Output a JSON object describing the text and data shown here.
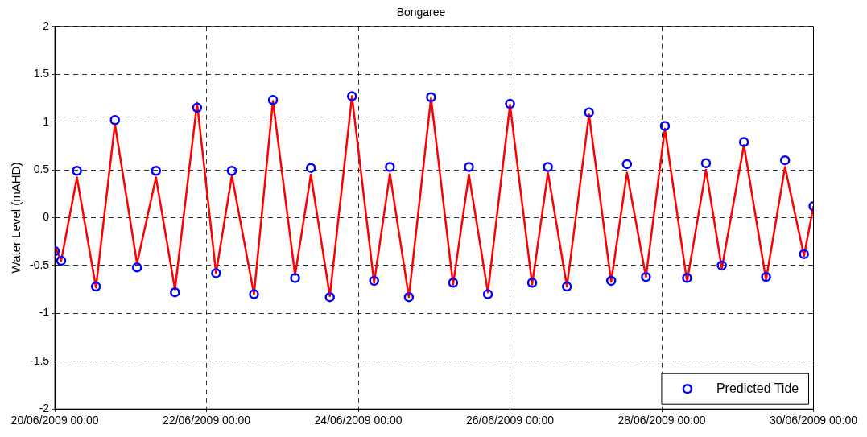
{
  "chart_data": {
    "type": "line",
    "title": "Bongaree",
    "ylabel": "Water Level (mAHD)",
    "xlim": [
      "2009-06-20",
      "2009-06-30"
    ],
    "xticks": [
      {
        "value": "2009-06-20",
        "label": "20/06/2009 00:00"
      },
      {
        "value": "2009-06-22",
        "label": "22/06/2009 00:00"
      },
      {
        "value": "2009-06-24",
        "label": "24/06/2009 00:00"
      },
      {
        "value": "2009-06-26",
        "label": "26/06/2009 00:00"
      },
      {
        "value": "2009-06-28",
        "label": "28/06/2009 00:00"
      },
      {
        "value": "2009-06-30",
        "label": "30/06/2009 00:00"
      }
    ],
    "ylim": [
      -2,
      2
    ],
    "yticks": [
      -2,
      -1.5,
      -1,
      -0.5,
      0,
      0.5,
      1,
      1.5,
      2
    ],
    "grid": true,
    "legend": "bottom right",
    "series": [
      {
        "name": "Predicted Tide",
        "type": "scatter",
        "marker": "circle",
        "color": "#0000ff",
        "x": [
          "2009-06-20T00:00",
          "2009-06-20T02:00",
          "2009-06-20T07:00",
          "2009-06-20T13:00",
          "2009-06-20T19:00",
          "2009-06-21T02:00",
          "2009-06-21T08:00",
          "2009-06-21T14:00",
          "2009-06-21T21:00",
          "2009-06-22T03:00",
          "2009-06-22T08:00",
          "2009-06-22T15:00",
          "2009-06-22T21:00",
          "2009-06-23T04:00",
          "2009-06-23T09:00",
          "2009-06-23T15:00",
          "2009-06-23T22:00",
          "2009-06-24T05:00",
          "2009-06-24T10:00",
          "2009-06-24T16:00",
          "2009-06-24T23:00",
          "2009-06-25T06:00",
          "2009-06-25T11:00",
          "2009-06-25T17:00",
          "2009-06-26T00:00",
          "2009-06-26T07:00",
          "2009-06-26T12:00",
          "2009-06-26T18:00",
          "2009-06-27T01:00",
          "2009-06-27T08:00",
          "2009-06-27T13:00",
          "2009-06-27T19:00",
          "2009-06-28T01:00",
          "2009-06-28T08:00",
          "2009-06-28T14:00",
          "2009-06-28T19:00",
          "2009-06-29T02:00",
          "2009-06-29T09:00",
          "2009-06-29T15:00",
          "2009-06-29T21:00",
          "2009-06-30T00:00"
        ],
        "values": [
          -0.35,
          -0.45,
          0.49,
          -0.72,
          1.02,
          -0.52,
          0.49,
          -0.78,
          1.15,
          -0.58,
          0.49,
          -0.8,
          1.23,
          -0.63,
          0.52,
          -0.83,
          1.27,
          -0.66,
          0.53,
          -0.83,
          1.26,
          -0.68,
          0.53,
          -0.8,
          1.19,
          -0.68,
          0.53,
          -0.72,
          1.1,
          -0.66,
          0.56,
          -0.62,
          0.96,
          -0.63,
          0.57,
          -0.5,
          0.79,
          -0.62,
          0.6,
          -0.38,
          0.12
        ]
      },
      {
        "marker": "none",
        "line_style": "solid",
        "color": "#ff0000",
        "x": [
          "2009-06-20T00:00",
          "2009-06-20T02:00",
          "2009-06-20T07:00",
          "2009-06-20T13:00",
          "2009-06-20T19:00",
          "2009-06-21T02:00",
          "2009-06-21T08:00",
          "2009-06-21T14:00",
          "2009-06-21T21:00",
          "2009-06-22T03:00",
          "2009-06-22T08:00",
          "2009-06-22T15:00",
          "2009-06-22T21:00",
          "2009-06-23T04:00",
          "2009-06-23T09:00",
          "2009-06-23T15:00",
          "2009-06-23T22:00",
          "2009-06-24T05:00",
          "2009-06-24T10:00",
          "2009-06-24T16:00",
          "2009-06-24T23:00",
          "2009-06-25T06:00",
          "2009-06-25T11:00",
          "2009-06-25T17:00",
          "2009-06-26T00:00",
          "2009-06-26T07:00",
          "2009-06-26T12:00",
          "2009-06-26T18:00",
          "2009-06-27T01:00",
          "2009-06-27T08:00",
          "2009-06-27T13:00",
          "2009-06-27T19:00",
          "2009-06-28T01:00",
          "2009-06-28T08:00",
          "2009-06-28T14:00",
          "2009-06-28T19:00",
          "2009-06-29T02:00",
          "2009-06-29T09:00",
          "2009-06-29T15:00",
          "2009-06-29T21:00",
          "2009-06-30T00:00"
        ],
        "values": [
          -0.3,
          -0.45,
          0.42,
          -0.73,
          0.98,
          -0.48,
          0.42,
          -0.75,
          1.2,
          -0.58,
          0.44,
          -0.8,
          1.22,
          -0.6,
          0.45,
          -0.82,
          1.27,
          -0.68,
          0.46,
          -0.83,
          1.25,
          -0.7,
          0.45,
          -0.78,
          1.18,
          -0.7,
          0.47,
          -0.72,
          1.08,
          -0.67,
          0.47,
          -0.62,
          0.93,
          -0.67,
          0.5,
          -0.53,
          0.76,
          -0.65,
          0.53,
          -0.4,
          0.12
        ]
      }
    ]
  }
}
